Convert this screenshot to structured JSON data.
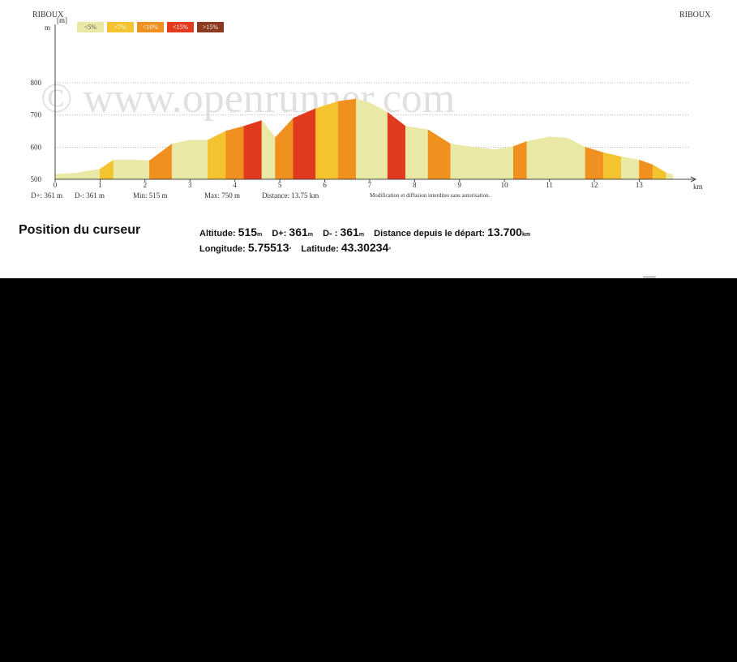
{
  "header": {
    "start_place": "RIBOUX",
    "end_place": "RIBOUX"
  },
  "watermark": "© www.openrunner.com",
  "legend": {
    "unit_label": "[m]",
    "items": [
      {
        "label": "<5%",
        "color": "#e9e8a4"
      },
      {
        "label": "<7%",
        "color": "#f3c430"
      },
      {
        "label": "<10%",
        "color": "#f0901f"
      },
      {
        "label": "<15%",
        "color": "#e23a1e"
      },
      {
        "label": ">15%",
        "color": "#8b3a20"
      }
    ]
  },
  "chart_data": {
    "type": "area",
    "ylabel": "m",
    "xlabel": "km",
    "xlim": [
      0,
      13.75
    ],
    "ylim": [
      500,
      800
    ],
    "y_ticks": [
      500,
      600,
      700,
      800
    ],
    "x_ticks": [
      0,
      1,
      2,
      3,
      4,
      5,
      6,
      7,
      8,
      9,
      10,
      11,
      12,
      13
    ],
    "grid": true,
    "x": [
      0,
      0.5,
      1.0,
      1.3,
      1.8,
      2.1,
      2.6,
      3.0,
      3.4,
      3.8,
      4.2,
      4.6,
      4.9,
      5.3,
      5.8,
      6.3,
      6.7,
      7.0,
      7.4,
      7.8,
      8.3,
      8.8,
      9.3,
      9.8,
      10.2,
      10.5,
      11.0,
      11.4,
      11.8,
      12.2,
      12.6,
      13.0,
      13.3,
      13.6,
      13.75
    ],
    "y": [
      515,
      520,
      532,
      560,
      560,
      558,
      610,
      622,
      622,
      650,
      665,
      683,
      630,
      690,
      720,
      742,
      750,
      738,
      708,
      665,
      654,
      610,
      600,
      592,
      602,
      618,
      632,
      628,
      600,
      583,
      570,
      560,
      545,
      520,
      515
    ],
    "segment_colors": [
      "#e9e8a4",
      "#e9e8a4",
      "#f3c430",
      "#e9e8a4",
      "#e9e8a4",
      "#f0901f",
      "#e9e8a4",
      "#e9e8a4",
      "#f3c430",
      "#f0901f",
      "#e23a1e",
      "#e9e8a4",
      "#f0901f",
      "#e23a1e",
      "#f3c430",
      "#f0901f",
      "#e9e8a4",
      "#e9e8a4",
      "#e23a1e",
      "#e9e8a4",
      "#f0901f",
      "#e9e8a4",
      "#e9e8a4",
      "#e9e8a4",
      "#f0901f",
      "#e9e8a4",
      "#e9e8a4",
      "#e9e8a4",
      "#f0901f",
      "#f3c430",
      "#e9e8a4",
      "#f0901f",
      "#f3c430",
      "#e9e8a4"
    ]
  },
  "stats": {
    "d_plus": "D+: 361 m",
    "d_minus": "D-: 361 m",
    "min": "Min: 515 m",
    "max": "Max: 750 m",
    "distance": "Distance: 13.75 km",
    "notice": "Modification et diffusion interdites sans autorisation."
  },
  "cursor": {
    "title": "Position du curseur",
    "altitude_label": "Altitude:",
    "altitude_value": "515",
    "altitude_unit": "m",
    "dplus_label": "D+:",
    "dplus_value": "361",
    "dplus_unit": "m",
    "dminus_label": "D- :",
    "dminus_value": "361",
    "dminus_unit": "m",
    "distance_label": "Distance depuis le départ:",
    "distance_value": "13.700",
    "distance_unit": "km",
    "longitude_label": "Longitude:",
    "longitude_value": "5.75513",
    "longitude_unit": "°",
    "latitude_label": "Latitude:",
    "latitude_value": "43.30234",
    "latitude_unit": "°"
  }
}
